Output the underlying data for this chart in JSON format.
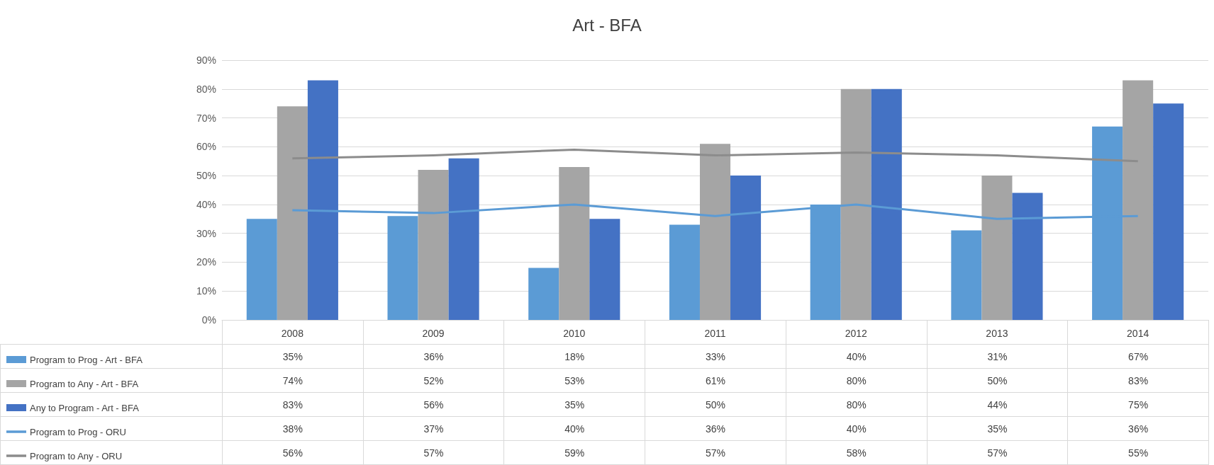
{
  "chart_data": {
    "type": "bar",
    "title": "Art - BFA",
    "categories": [
      "2008",
      "2009",
      "2010",
      "2011",
      "2012",
      "2013",
      "2014"
    ],
    "series": [
      {
        "name": "Program to Prog - Art - BFA",
        "color": "#5b9bd5",
        "values": [
          35,
          36,
          18,
          33,
          40,
          31,
          67
        ],
        "value_labels": [
          "35%",
          "36%",
          "18%",
          "33%",
          "40%",
          "31%",
          "67%"
        ]
      },
      {
        "name": "Program to Any - Art - BFA",
        "color": "#a5a5a5",
        "values": [
          74,
          52,
          53,
          61,
          80,
          50,
          83
        ],
        "value_labels": [
          "74%",
          "52%",
          "53%",
          "61%",
          "80%",
          "50%",
          "83%"
        ]
      },
      {
        "name": "Any to Program - Art - BFA",
        "color": "#4472c4",
        "values": [
          83,
          56,
          35,
          50,
          80,
          44,
          75
        ],
        "value_labels": [
          "83%",
          "56%",
          "35%",
          "50%",
          "80%",
          "44%",
          "75%"
        ]
      },
      {
        "name": "Program to Prog - ORU",
        "type": "line",
        "color": "#5b9bd5",
        "values": [
          38,
          37,
          40,
          36,
          40,
          35,
          36
        ],
        "value_labels": [
          "38%",
          "37%",
          "40%",
          "36%",
          "40%",
          "35%",
          "36%"
        ]
      },
      {
        "name": "Program to Any - ORU",
        "type": "line",
        "color": "#8c8c8c",
        "values": [
          56,
          57,
          59,
          57,
          58,
          57,
          55
        ],
        "value_labels": [
          "56%",
          "57%",
          "59%",
          "57%",
          "58%",
          "57%",
          "55%"
        ]
      }
    ],
    "ylim": [
      0,
      90
    ],
    "yticks": [
      {
        "value": 0,
        "label": "0%"
      },
      {
        "value": 10,
        "label": "10%"
      },
      {
        "value": 20,
        "label": "20%"
      },
      {
        "value": 30,
        "label": "30%"
      },
      {
        "value": 40,
        "label": "40%"
      },
      {
        "value": 50,
        "label": "50%"
      },
      {
        "value": 60,
        "label": "60%"
      },
      {
        "value": 70,
        "label": "70%"
      },
      {
        "value": 80,
        "label": "80%"
      },
      {
        "value": 90,
        "label": "90%"
      }
    ],
    "grid": "y",
    "legend": "bottom",
    "marker": "none"
  }
}
